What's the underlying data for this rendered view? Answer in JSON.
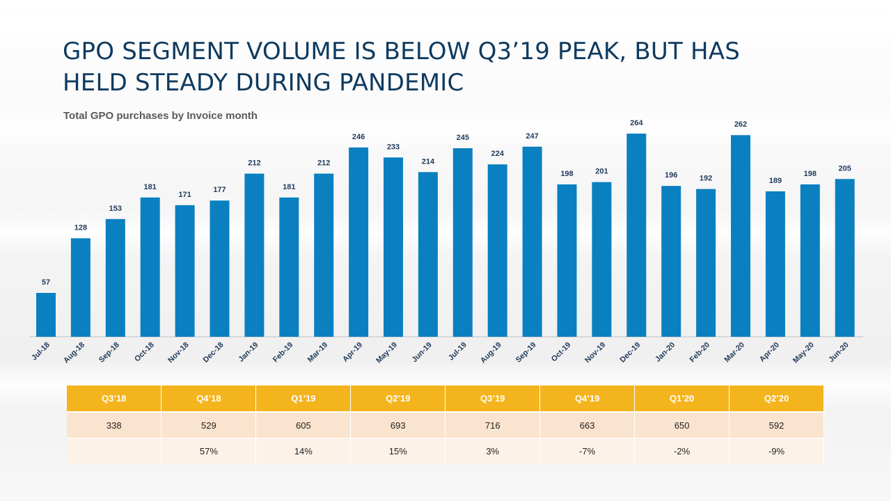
{
  "slide": {
    "title_lines": [
      "GPO SEGMENT VOLUME IS BELOW Q3’19 PEAK, BUT HAS",
      "HELD STEADY DURING PANDEMIC"
    ],
    "subtitle": "Total GPO purchases by Invoice month"
  },
  "chart_data": {
    "type": "bar",
    "categories": [
      "Jul-18",
      "Aug-18",
      "Sep-18",
      "Oct-18",
      "Nov-18",
      "Dec-18",
      "Jan-19",
      "Feb-19",
      "Mar-19",
      "Apr-19",
      "May-19",
      "Jun-19",
      "Jul-19",
      "Aug-19",
      "Sep-19",
      "Oct-19",
      "Nov-19",
      "Dec-19",
      "Jan-20",
      "Feb-20",
      "Mar-20",
      "Apr-20",
      "May-20",
      "Jun-20"
    ],
    "values": [
      57,
      128,
      153,
      181,
      171,
      177,
      212,
      181,
      212,
      246,
      233,
      214,
      245,
      224,
      247,
      198,
      201,
      264,
      196,
      192,
      262,
      189,
      198,
      205
    ],
    "title": "Total GPO purchases by Invoice month",
    "xlabel": "",
    "ylabel": "",
    "ylim": [
      0,
      264
    ],
    "grid": false,
    "color": "#0a80c1"
  },
  "table": {
    "headers": [
      "Q3’18",
      "Q4’18",
      "Q1’19",
      "Q2’19",
      "Q3’19",
      "Q4’19",
      "Q1’20",
      "Q2’20"
    ],
    "volumes": [
      "338",
      "529",
      "605",
      "693",
      "716",
      "663",
      "650",
      "592"
    ],
    "changes": [
      "",
      "57%",
      "14%",
      "15%",
      "3%",
      "-7%",
      "-2%",
      "-9%"
    ],
    "negative_color": "#d01010",
    "header_color": "#f4b41d"
  }
}
